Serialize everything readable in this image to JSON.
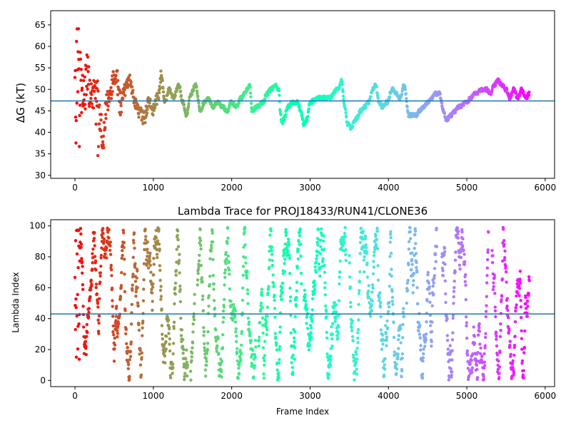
{
  "chart_data": [
    {
      "type": "scatter",
      "title": "",
      "xlabel": "",
      "ylabel": "ΔG (kT)",
      "xlim": [
        -310,
        6120
      ],
      "ylim": [
        29.3,
        68.3
      ],
      "xticks": [
        0,
        1000,
        2000,
        3000,
        4000,
        5000,
        6000
      ],
      "yticks": [
        30,
        35,
        40,
        45,
        50,
        55,
        60,
        65
      ],
      "colormap": "rainbow (red to violet by frame index)",
      "hline": {
        "y": 47.3,
        "color": "#1f77b4"
      },
      "n_frames": 5800,
      "trace_knots": {
        "x": [
          0,
          40,
          80,
          120,
          160,
          200,
          240,
          280,
          320,
          360,
          400,
          440,
          480,
          520,
          580,
          640,
          700,
          760,
          820,
          880,
          940,
          1000,
          1060,
          1100,
          1150,
          1200,
          1260,
          1320,
          1380,
          1420,
          1480,
          1540,
          1600,
          1650,
          1700,
          1760,
          1820,
          1880,
          1940,
          2000,
          2060,
          2120,
          2200,
          2230,
          2260,
          2330,
          2400,
          2450,
          2500,
          2560,
          2600,
          2620,
          2640,
          2660,
          2720,
          2780,
          2840,
          2880,
          2920,
          2960,
          3000,
          3100,
          3150,
          3250,
          3350,
          3400,
          3440,
          3480,
          3520,
          3580,
          3650,
          3700,
          3750,
          3800,
          3840,
          3880,
          3920,
          3980,
          4050,
          4100,
          4150,
          4200,
          4260,
          4350,
          4400,
          4450,
          4500,
          4560,
          4600,
          4650,
          4700,
          4740,
          4800,
          4850,
          4900,
          5000,
          5050,
          5100,
          5200,
          5250,
          5300,
          5350,
          5400,
          5450,
          5500,
          5550,
          5600,
          5650,
          5700,
          5750,
          5800
        ],
        "y": [
          52,
          55,
          49,
          50,
          53,
          48,
          51,
          47,
          43,
          38,
          46,
          48,
          51,
          53,
          47,
          50,
          52,
          47,
          45,
          43,
          47,
          45,
          48,
          53,
          47,
          50,
          48,
          51,
          47,
          44,
          49,
          51,
          45,
          47,
          48,
          46,
          47,
          46,
          45,
          47,
          46,
          48,
          50,
          51,
          45,
          46,
          47,
          49,
          50,
          51,
          50,
          45,
          42,
          43,
          46,
          47,
          47,
          45,
          42,
          43,
          47,
          48,
          48,
          48,
          50,
          52,
          46,
          42,
          41,
          43,
          45,
          46,
          47,
          50,
          51,
          47,
          46,
          47,
          50,
          49,
          48,
          51,
          44,
          44,
          45,
          46,
          47,
          48,
          49,
          49,
          45,
          43,
          44,
          45,
          46,
          47,
          48,
          49,
          50,
          50,
          49,
          51,
          52,
          51,
          50,
          48,
          50,
          48,
          50,
          48,
          49
        ]
      }
    },
    {
      "type": "scatter",
      "title": "Lambda Trace for PROJ18433/RUN41/CLONE36",
      "xlabel": "Frame Index",
      "ylabel": "Lambda Index",
      "xlim": [
        -310,
        6120
      ],
      "ylim": [
        -4,
        104
      ],
      "xticks": [
        0,
        1000,
        2000,
        3000,
        4000,
        5000,
        6000
      ],
      "yticks": [
        0,
        20,
        40,
        60,
        80,
        100
      ],
      "colormap": "rainbow (red to violet by frame index)",
      "hline": {
        "y": 43,
        "color": "#1f77b4"
      },
      "n_frames": 5800
    }
  ]
}
